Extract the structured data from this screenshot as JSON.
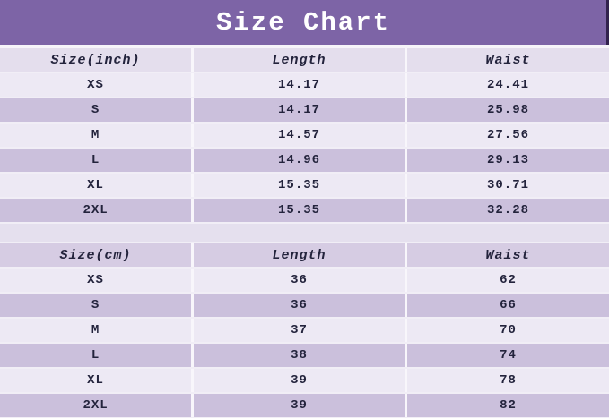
{
  "title": "Size Chart",
  "colors": {
    "title_bg": "#7D64A6",
    "title_text": "#FFFFFF",
    "header_inch_bg": "#E4DEED",
    "header_cm_bg": "#D6CCE3",
    "row_light_bg": "#EDE9F4",
    "row_dark_bg": "#CBC0DC",
    "gridline": "#F8F6FB",
    "text": "#23233C"
  },
  "chart_data": [
    {
      "type": "table",
      "title": "Size Chart",
      "columns": [
        "Size(inch)",
        "Length",
        "Waist"
      ],
      "rows": [
        [
          "XS",
          "14.17",
          "24.41"
        ],
        [
          "S",
          "14.17",
          "25.98"
        ],
        [
          "M",
          "14.57",
          "27.56"
        ],
        [
          "L",
          "14.96",
          "29.13"
        ],
        [
          "XL",
          "15.35",
          "30.71"
        ],
        [
          "2XL",
          "15.35",
          "32.28"
        ]
      ]
    },
    {
      "type": "table",
      "columns": [
        "Size(cm)",
        "Length",
        "Waist"
      ],
      "rows": [
        [
          "XS",
          "36",
          "62"
        ],
        [
          "S",
          "36",
          "66"
        ],
        [
          "M",
          "37",
          "70"
        ],
        [
          "L",
          "38",
          "74"
        ],
        [
          "XL",
          "39",
          "78"
        ],
        [
          "2XL",
          "39",
          "82"
        ]
      ]
    }
  ]
}
